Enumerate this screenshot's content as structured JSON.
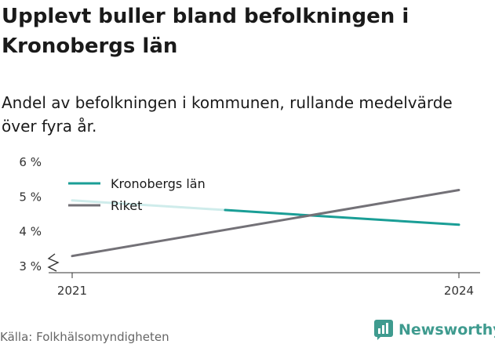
{
  "chart_data": {
    "type": "line",
    "title": "Upplevt buller bland befolkningen i Kronobergs län",
    "subtitle": "Andel av befolkningen i kommunen, rullande medelvärde över fyra år.",
    "x": [
      2021,
      2024
    ],
    "x_tick_labels": [
      "2021",
      "2024"
    ],
    "y_tick_labels": [
      "3 %",
      "4 %",
      "5 %",
      "6 %"
    ],
    "ylim": [
      3,
      6
    ],
    "series": [
      {
        "name": "Kronobergs län",
        "color": "#1a9e96",
        "values": [
          4.9,
          4.2
        ]
      },
      {
        "name": "Riket",
        "color": "#737177",
        "values": [
          3.3,
          5.2
        ]
      }
    ],
    "legend_placement": "top-left",
    "grid": false
  },
  "footer": {
    "source": "Källa: Folkhälsomyndigheten",
    "brand": "Newsworthy",
    "brand_icon": "newsworthy-logo-icon"
  }
}
